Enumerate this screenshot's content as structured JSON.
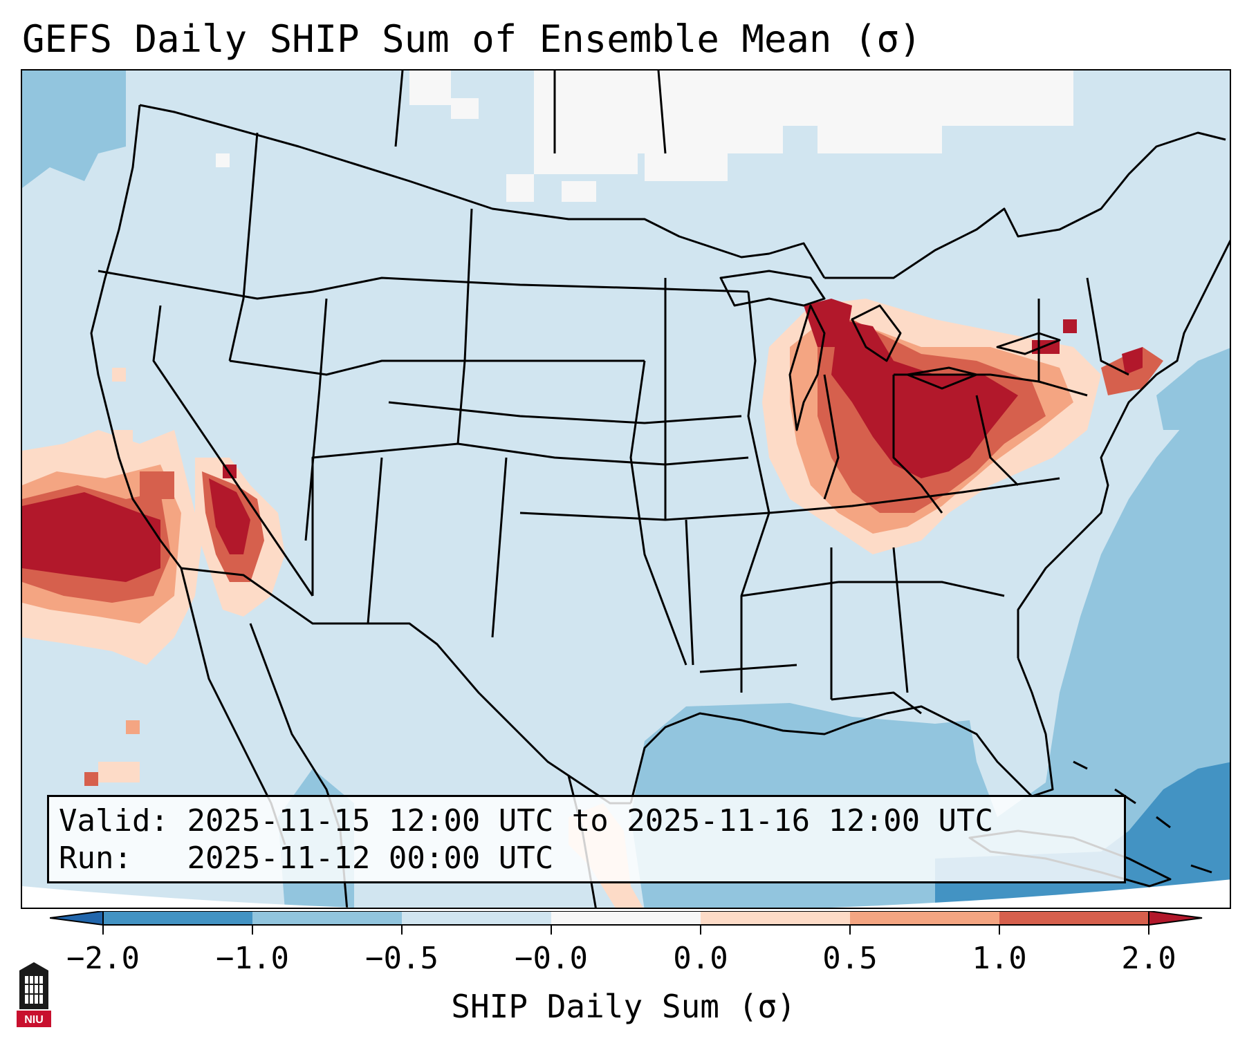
{
  "title": "GEFS Daily SHIP Sum of Ensemble Mean (σ)",
  "info": {
    "valid_label": "Valid:",
    "valid_value": "2025-11-15 12:00 UTC to 2025-11-16 12:00 UTC",
    "run_label": "Run:",
    "run_value": "2025-11-12 00:00 UTC"
  },
  "colorbar": {
    "label": "SHIP Daily Sum (σ)",
    "ticks": [
      "−2.0",
      "−1.0",
      "−0.5",
      "−0.0",
      "0.0",
      "0.5",
      "1.0",
      "2.0"
    ],
    "bins": [
      {
        "range": "<-2.0",
        "color": "#2166ac"
      },
      {
        "range": "-2.0 to -1.0",
        "color": "#4393c3"
      },
      {
        "range": "-1.0 to -0.5",
        "color": "#92c5de"
      },
      {
        "range": "-0.5 to -0.0",
        "color": "#d1e5f0"
      },
      {
        "range": "-0.0 to 0.0",
        "color": "#f7f7f7"
      },
      {
        "range": "0.0 to 0.5",
        "color": "#fddbc7"
      },
      {
        "range": "0.5 to 1.0",
        "color": "#f4a582"
      },
      {
        "range": "1.0 to 2.0",
        "color": "#d6604d"
      },
      {
        "range": ">2.0",
        "color": "#b2182b"
      }
    ]
  },
  "map": {
    "region": "Continental United States",
    "anomaly_regions": [
      {
        "name": "Eastern Pacific off California",
        "category": "1.0 to 2.0+"
      },
      {
        "name": "Southern Nevada / Lower Colorado River",
        "category": "1.0 to 2.0+"
      },
      {
        "name": "Michigan / Ohio / Pennsylvania / West Virginia",
        "category": "1.0 to 2.0+"
      },
      {
        "name": "South Texas coast",
        "category": "0.0 to 0.5"
      },
      {
        "name": "Gulf of Mexico / Western Atlantic",
        "category": "-1.0 to -0.5"
      },
      {
        "name": "Caribbean / Bahamas",
        "category": "-2.0 to -1.0"
      }
    ]
  },
  "logo": {
    "text": "NIU"
  }
}
